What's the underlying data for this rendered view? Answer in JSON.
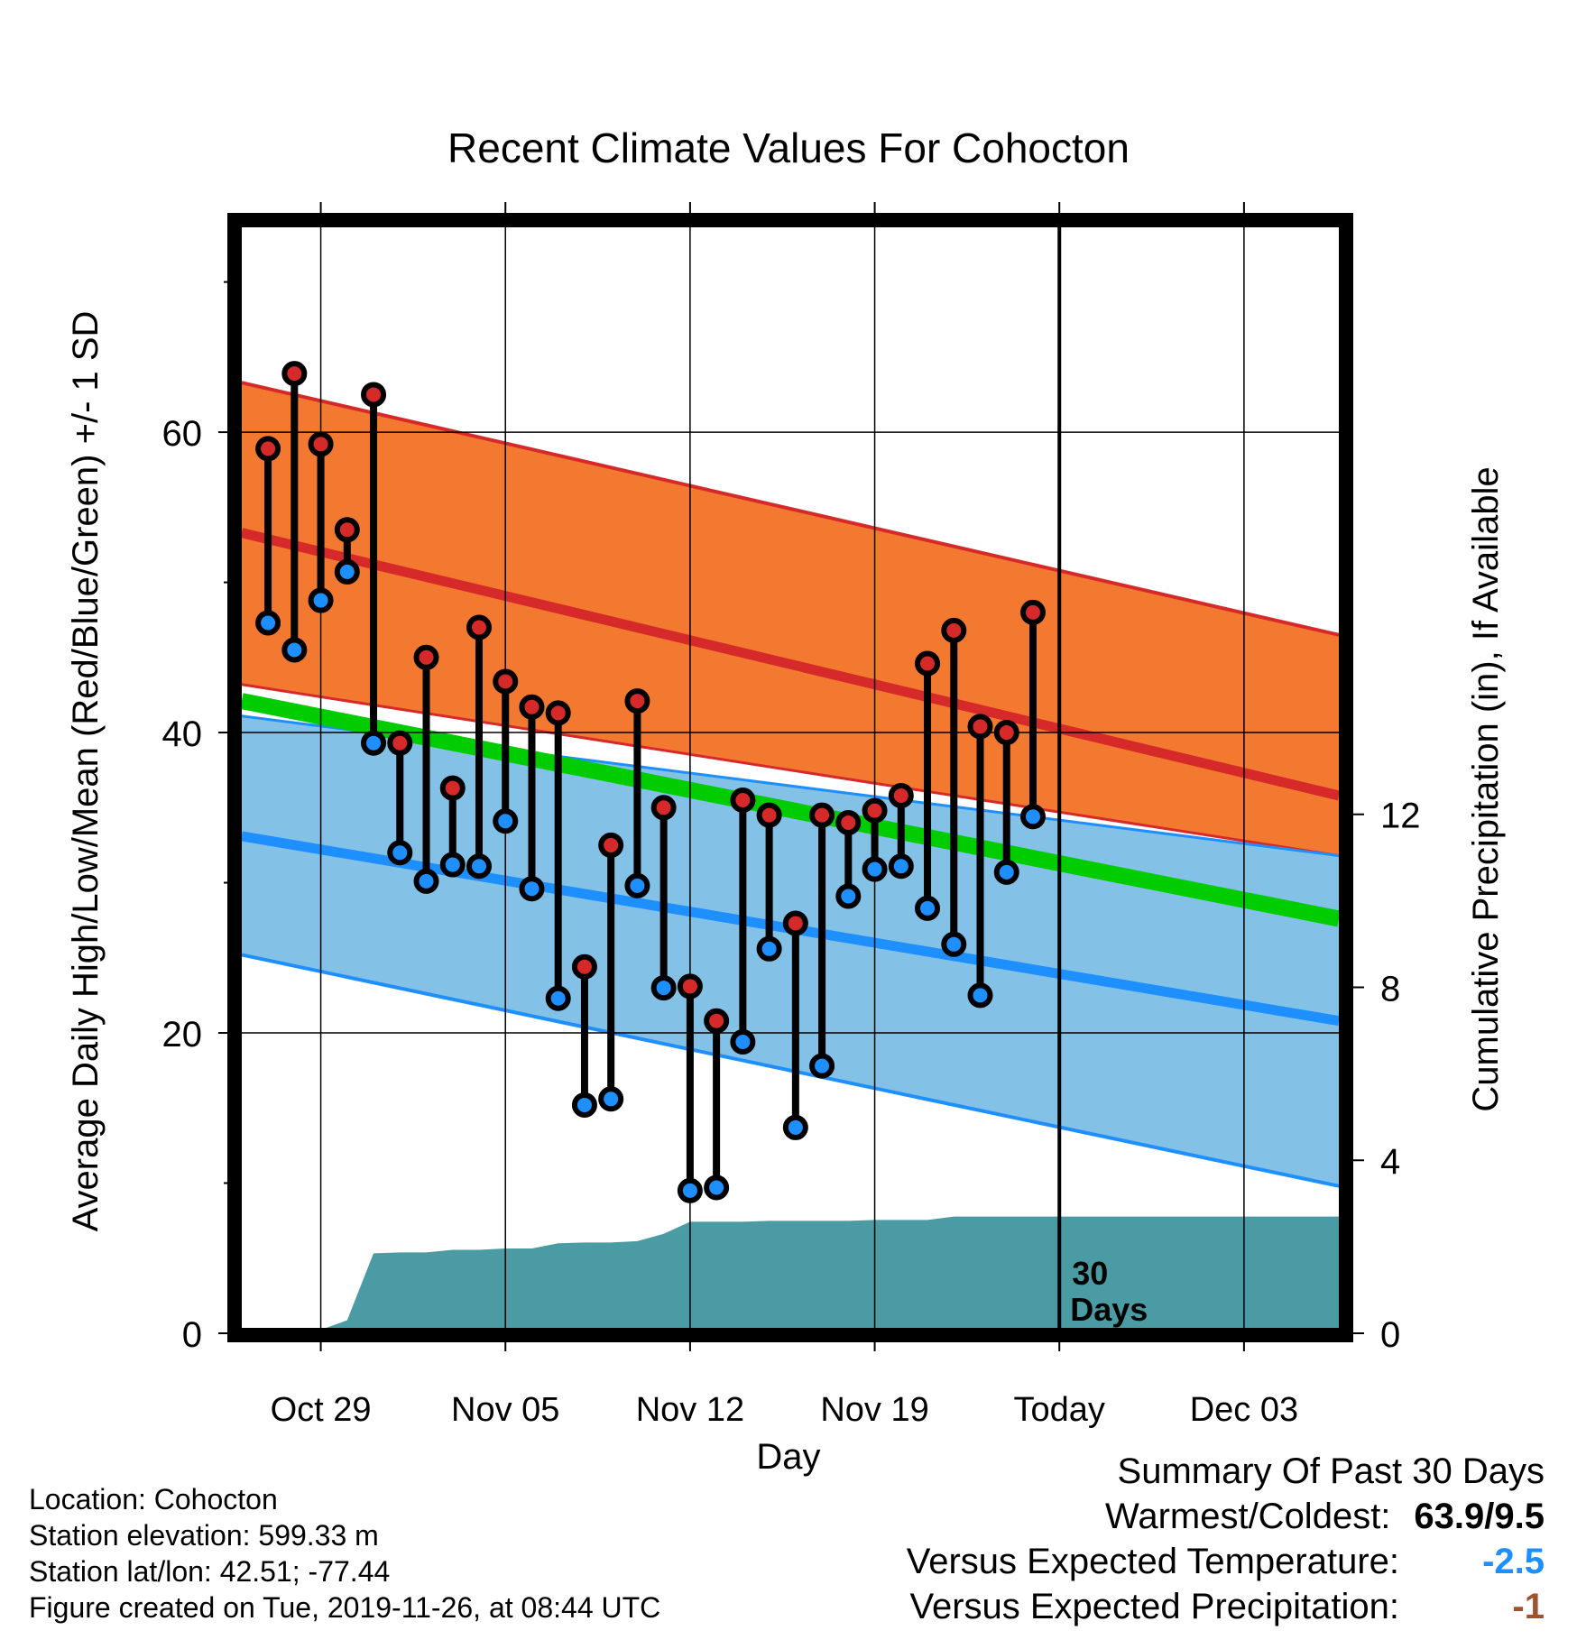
{
  "chart_data": {
    "type": "line",
    "title": "Recent Climate Values For Cohocton",
    "xlabel": "Day",
    "ylabel": "Average Daily High/Low/Mean (Red/Blue/Green) +/- 1 SD",
    "y2label": "Cumulative Precipitation (in), If Available",
    "x_ticks": [
      "Oct 29",
      "Nov 05",
      "Nov 12",
      "Nov 19",
      "Today",
      "Dec 03"
    ],
    "x_tick_days": [
      3,
      10,
      17,
      24,
      31,
      38
    ],
    "xlim": [
      -0.2,
      41.8
    ],
    "ylim": [
      0,
      74
    ],
    "y_ticks": [
      "0",
      "20",
      "40",
      "60"
    ],
    "y_tick_values": [
      0,
      20,
      40,
      60
    ],
    "y2lim": [
      0,
      25.7
    ],
    "y2_ticks": [
      "0",
      "4",
      "8",
      "12"
    ],
    "y2_tick_values": [
      0,
      4,
      8,
      12
    ],
    "grid": true,
    "today_marker": {
      "day": 31,
      "label_line1": "30",
      "label_line2": "Days"
    },
    "normal_bands": {
      "days": [
        0,
        41.6
      ],
      "high_mean": [
        53.3,
        35.8
      ],
      "high_upper": [
        63.3,
        46.5
      ],
      "high_lower": [
        43.2,
        31.8
      ],
      "low_mean": [
        33.1,
        20.8
      ],
      "low_upper": [
        41.1,
        31.8
      ],
      "low_lower": [
        25.2,
        9.8
      ],
      "mean": [
        42.1,
        27.6
      ]
    },
    "colors": {
      "high_band": "#f47930",
      "high_line": "#d62a2a",
      "low_band": "#84c1e6",
      "low_line": "#1e8fff",
      "mean_line": "#00cc00",
      "overlap_band": "#8e1a1a",
      "precip": "#4a9ba3",
      "high_dot": "#d62a2a",
      "low_dot": "#1e8fff"
    },
    "series": [
      {
        "days": [
          1,
          2,
          3,
          4,
          5,
          6,
          7,
          8,
          9,
          10,
          11,
          12,
          13,
          14,
          15,
          16,
          17,
          18,
          19,
          20,
          21,
          22,
          23,
          24,
          25,
          26,
          27,
          28,
          29,
          30
        ],
        "highs": [
          58.9,
          63.9,
          59.2,
          53.5,
          62.5,
          39.3,
          45.0,
          36.3,
          47.0,
          43.4,
          41.7,
          41.3,
          24.4,
          32.5,
          42.1,
          35.0,
          23.1,
          20.8,
          35.5,
          34.5,
          27.3,
          34.5,
          34.0,
          34.8,
          35.8,
          44.6,
          46.8,
          40.4,
          40.0,
          48.0
        ],
        "lows": [
          47.3,
          45.5,
          48.8,
          50.7,
          39.3,
          32.0,
          30.1,
          31.2,
          31.1,
          34.1,
          29.6,
          22.3,
          15.2,
          15.6,
          29.8,
          23.0,
          9.5,
          9.7,
          19.4,
          25.6,
          13.7,
          17.8,
          29.1,
          30.9,
          31.1,
          28.3,
          25.9,
          22.5,
          30.7,
          34.4
        ]
      }
    ],
    "precipitation": {
      "days": [
        0,
        0.5,
        2,
        3,
        4,
        5,
        6,
        7,
        8,
        9,
        10,
        11,
        12,
        13,
        14,
        15,
        16,
        17,
        18,
        19,
        20,
        21,
        22,
        23,
        24,
        25,
        26,
        27,
        28,
        29,
        30,
        31,
        41.6
      ],
      "values": [
        0,
        0.08,
        0.08,
        0.08,
        0.3,
        1.85,
        1.87,
        1.87,
        1.93,
        1.93,
        1.96,
        1.96,
        2.08,
        2.1,
        2.1,
        2.13,
        2.3,
        2.58,
        2.58,
        2.58,
        2.6,
        2.6,
        2.6,
        2.6,
        2.62,
        2.62,
        2.62,
        2.7,
        2.7,
        2.7,
        2.7,
        2.7,
        2.7
      ]
    }
  },
  "footer": {
    "location": "Location: Cohocton",
    "elevation": "Station elevation: 599.33 m",
    "latlon": "Station lat/lon: 42.51; -77.44",
    "created": "Figure created on Tue, 2019-11-26, at 08:44 UTC"
  },
  "summary": {
    "title": "Summary Of Past 30 Days",
    "warmest_label": "Warmest/Coldest:",
    "warmest_value": "63.9/9.5",
    "temp_label": "Versus Expected Temperature:",
    "temp_value": "-2.5",
    "temp_color": "#1e8fff",
    "precip_label": "Versus Expected Precipitation:",
    "precip_value": "-1",
    "precip_color": "#a0522d"
  }
}
